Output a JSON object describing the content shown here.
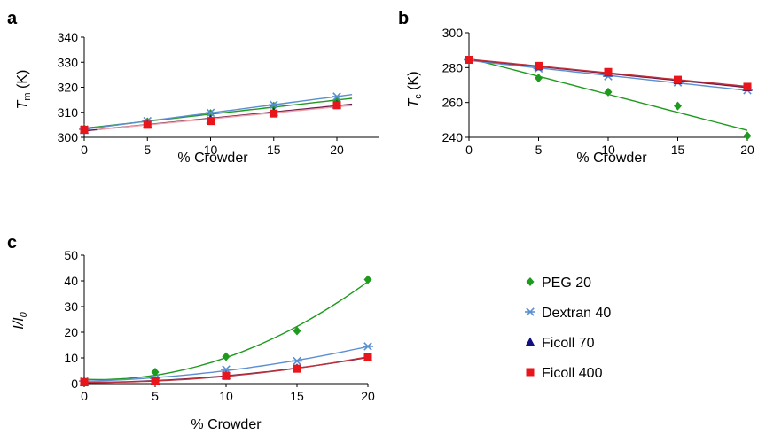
{
  "legend": {
    "items": [
      {
        "name": "PEG 20",
        "color": "#1e9a1e",
        "marker": "diamond"
      },
      {
        "name": "Dextran 40",
        "color": "#5b8fd0",
        "marker": "asterisk"
      },
      {
        "name": "Ficoll 70",
        "color": "#101080",
        "marker": "triangle"
      },
      {
        "name": "Ficoll 400",
        "color": "#e8151b",
        "marker": "square"
      }
    ],
    "placement": "right"
  },
  "chart_data": [
    {
      "panel": "a",
      "type": "scatter",
      "xlabel": "% Crowder",
      "ylabel": "T_m (K)",
      "ylabel_main": "T",
      "ylabel_sub": "m",
      "ylabel_unit": " (K)",
      "xlim": [
        0,
        21.2
      ],
      "ylim": [
        300,
        340
      ],
      "xticks": [
        0,
        5,
        10,
        15,
        20
      ],
      "yticks": [
        300,
        310,
        320,
        330,
        340
      ],
      "series": [
        {
          "name": "PEG 20",
          "x": [
            0,
            5,
            10,
            15,
            20
          ],
          "y": [
            303.5,
            306.2,
            309.5,
            312.5,
            314.5
          ],
          "fit": "linear"
        },
        {
          "name": "Dextran 40",
          "x": [
            0,
            5,
            10,
            15,
            20
          ],
          "y": [
            303.2,
            306.5,
            309.8,
            313.0,
            316.3
          ],
          "fit": "linear"
        },
        {
          "name": "Ficoll 70",
          "x": [
            0,
            5,
            10,
            15,
            20
          ],
          "y": [
            302.8,
            305.2,
            307.0,
            310.0,
            313.0
          ],
          "fit": "linear"
        },
        {
          "name": "Ficoll 400",
          "x": [
            0,
            5,
            10,
            15,
            20
          ],
          "y": [
            303.0,
            305.0,
            306.5,
            309.5,
            312.8
          ],
          "fit": "linear"
        }
      ]
    },
    {
      "panel": "b",
      "type": "scatter",
      "xlabel": "% Crowder",
      "ylabel": "T_c (K)",
      "ylabel_main": "T",
      "ylabel_sub": "c",
      "ylabel_unit": " (K)",
      "xlim": [
        0,
        20
      ],
      "ylim": [
        240,
        300
      ],
      "xticks": [
        0,
        5,
        10,
        15,
        20
      ],
      "yticks": [
        240,
        260,
        280,
        300
      ],
      "series": [
        {
          "name": "PEG 20",
          "x": [
            0,
            5,
            10,
            15,
            20
          ],
          "y": [
            284.5,
            274.0,
            266.0,
            258.0,
            240.8
          ],
          "fit": "linear"
        },
        {
          "name": "Dextran 40",
          "x": [
            0,
            5,
            10,
            15,
            20
          ],
          "y": [
            284.5,
            279.5,
            275.0,
            271.5,
            267.0
          ],
          "fit": "linear"
        },
        {
          "name": "Ficoll 70",
          "x": [
            0,
            5,
            10,
            15,
            20
          ],
          "y": [
            284.5,
            280.5,
            277.0,
            272.5,
            268.5
          ],
          "fit": "linear"
        },
        {
          "name": "Ficoll 400",
          "x": [
            0,
            5,
            10,
            15,
            20
          ],
          "y": [
            284.5,
            281.0,
            277.5,
            273.0,
            269.0
          ],
          "fit": "linear"
        }
      ]
    },
    {
      "panel": "c",
      "type": "scatter",
      "xlabel": "% Crowder",
      "ylabel": "I/I_0",
      "ylabel_main": "I/I",
      "ylabel_sub": "0",
      "ylabel_unit": "",
      "xlim": [
        0,
        20
      ],
      "ylim": [
        0,
        50
      ],
      "xticks": [
        0,
        5,
        10,
        15,
        20
      ],
      "yticks": [
        0,
        10,
        20,
        30,
        40,
        50
      ],
      "series": [
        {
          "name": "PEG 20",
          "x": [
            0,
            5,
            10,
            15,
            20
          ],
          "y": [
            1.0,
            4.5,
            10.5,
            20.5,
            40.5
          ],
          "fit": "quadratic"
        },
        {
          "name": "Dextran 40",
          "x": [
            0,
            5,
            10,
            15,
            20
          ],
          "y": [
            1.0,
            2.0,
            5.5,
            8.8,
            14.5
          ],
          "fit": "quadratic"
        },
        {
          "name": "Ficoll 70",
          "x": [
            0,
            5,
            10,
            15,
            20
          ],
          "y": [
            0.5,
            1.0,
            3.2,
            6.0,
            10.2
          ],
          "fit": "quadratic"
        },
        {
          "name": "Ficoll 400",
          "x": [
            0,
            5,
            10,
            15,
            20
          ],
          "y": [
            0.5,
            1.0,
            3.0,
            5.8,
            10.5
          ],
          "fit": "quadratic"
        }
      ]
    }
  ]
}
